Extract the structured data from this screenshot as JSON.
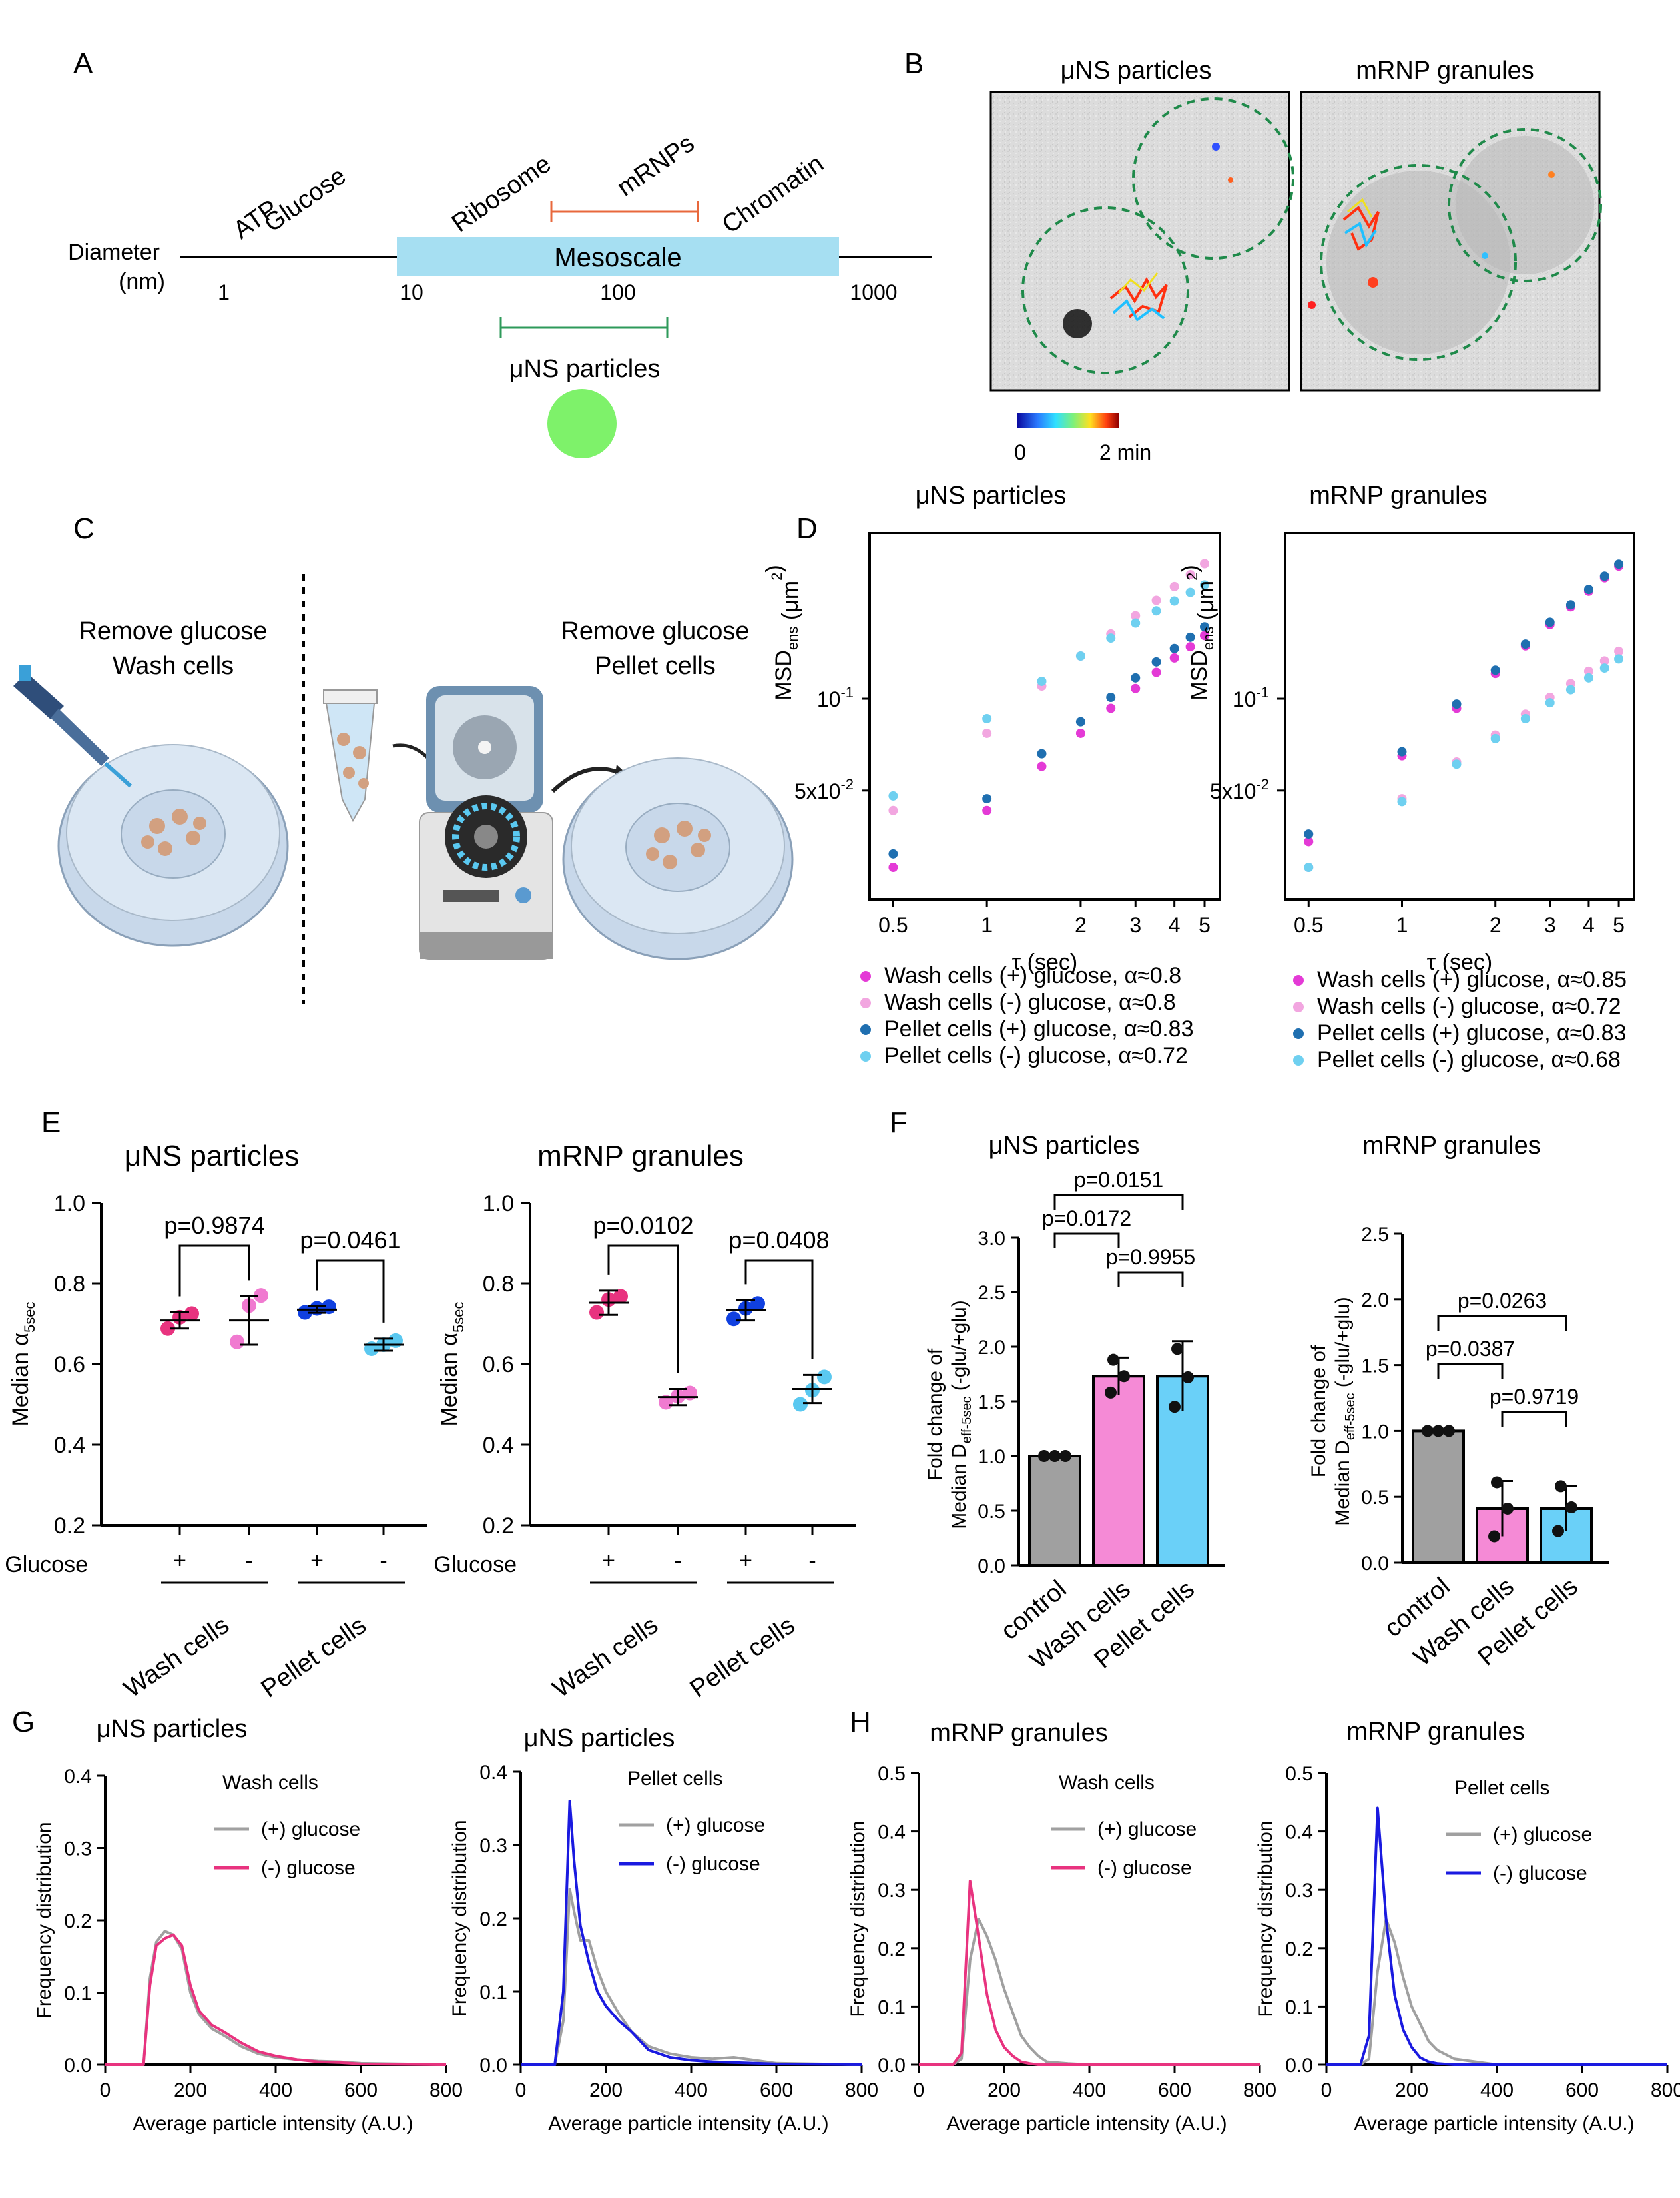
{
  "panels": {
    "a": {
      "letter": "A",
      "diameter_label": "Diameter",
      "nm_label": "(nm)",
      "scale_ticks": [
        "1",
        "10",
        "100",
        "1000"
      ],
      "mesoscale_label": "Mesoscale",
      "tilted_labels": [
        "ATP",
        "Glucose",
        "Ribosome",
        "mRNPs",
        "Chromatin"
      ],
      "uns_label": "μNS particles",
      "colors": {
        "mesoscale": "#a6dff2",
        "mrnp": "#e8683c",
        "uns": "#2e9a5a",
        "dot": "#7ef26a"
      }
    },
    "b": {
      "letter": "B",
      "titles": [
        "μNS particles",
        "mRNP granules"
      ],
      "colorbar_labels": [
        "0",
        "2 min"
      ]
    },
    "c": {
      "letter": "C",
      "left_title": [
        "Remove glucose",
        "Wash cells"
      ],
      "right_title": [
        "Remove glucose",
        "Pellet cells"
      ]
    },
    "d": {
      "letter": "D",
      "titles": [
        "μNS particles",
        "mRNP granules"
      ],
      "ylabel_main": "MSD",
      "ylabel_sub": "ens",
      "ylabel_unit": "(μm",
      "ylabel_close": ")",
      "ylabel_sup": "2",
      "xlabel": "τ (sec)",
      "y_ticks": [
        "10",
        "5x10"
      ],
      "y_tick_sup": [
        "-1",
        "-2"
      ],
      "x_ticks": [
        "0.5",
        "1",
        "2",
        "3",
        "4",
        "5"
      ],
      "legend_left": [
        "Wash cells (+) glucose, α≈0.8",
        "Wash cells (-) glucose, α≈0.8",
        "Pellet cells (+) glucose, α≈0.83",
        "Pellet cells (-) glucose, α≈0.72"
      ],
      "legend_right": [
        "Wash cells (+) glucose, α≈0.85",
        "Wash cells (-) glucose, α≈0.72",
        "Pellet cells (+) glucose, α≈0.83",
        "Pellet cells (-) glucose, α≈0.68"
      ],
      "colors": [
        "#e43ad6",
        "#f2a6e0",
        "#1f6fb0",
        "#6fd0f0"
      ]
    },
    "e": {
      "letter": "E",
      "titles": [
        "μNS particles",
        "mRNP granules"
      ],
      "ylabel": "Median α",
      "ylabel_sub": "5sec",
      "y_ticks": [
        "0.2",
        "0.4",
        "0.6",
        "0.8",
        "1.0"
      ],
      "glucose_label": "Glucose",
      "signs": [
        "+",
        "-",
        "+",
        "-"
      ],
      "group_labels": [
        "Wash cells",
        "Pellet cells"
      ],
      "pvalues_left": [
        "p=0.9874",
        "p=0.0461"
      ],
      "pvalues_right": [
        "p=0.0102",
        "p=0.0408"
      ],
      "colors": [
        "#e8337f",
        "#f07ad0",
        "#1040e0",
        "#5ac8f0"
      ]
    },
    "f": {
      "letter": "F",
      "titles": [
        "μNS particles",
        "mRNP granules"
      ],
      "ylabel_line1": "Fold change of",
      "ylabel_line2": "Median D",
      "ylabel_sub": "eff-5sec",
      "ylabel_tail": " (-glu/+glu)",
      "left_y_ticks": [
        "0.0",
        "0.5",
        "1.0",
        "1.5",
        "2.0",
        "2.5",
        "3.0"
      ],
      "right_y_ticks": [
        "0.0",
        "0.5",
        "1.0",
        "1.5",
        "2.0",
        "2.5"
      ],
      "categories": [
        "control",
        "Wash cells",
        "Pellet cells"
      ],
      "pvalues_left": [
        "p=0.0151",
        "p=0.0172",
        "p=0.9955"
      ],
      "pvalues_right": [
        "p=0.0263",
        "p=0.0387",
        "p=0.9719"
      ],
      "colors": [
        "#a0a0a0",
        "#f58ad6",
        "#6ad0f8"
      ]
    },
    "g": {
      "letter": "G",
      "titles": [
        "μNS particles",
        "μNS particles"
      ],
      "legend_titles": [
        "Wash cells",
        "Pellet cells"
      ]
    },
    "h": {
      "letter": "H",
      "titles": [
        "mRNP granules",
        "mRNP granules"
      ],
      "legend_titles": [
        "Wash cells",
        "Pellet cells"
      ]
    },
    "hist": {
      "ylabel": "Frequency distribution",
      "xlabel": "Average particle intensity (A.U.)",
      "x_ticks": [
        "0",
        "200",
        "400",
        "600",
        "800"
      ],
      "y_ticks": [
        "0.0",
        "0.1",
        "0.2",
        "0.3",
        "0.4"
      ],
      "h_y_ticks": [
        "0.0",
        "0.1",
        "0.2",
        "0.3",
        "0.4",
        "0.5"
      ],
      "legend_plus": "(+) glucose",
      "legend_minus": "(-) glucose",
      "colors": {
        "plus": "#a0a0a0",
        "wash_minus": "#e8337f",
        "pellet_minus": "#1a1ae0"
      }
    }
  },
  "chart_data": [
    {
      "panel": "D-left",
      "type": "scatter",
      "title": "μNS particles",
      "xlabel": "τ (sec)",
      "ylabel": "MSD_ens (μm²)",
      "x_scale": "log",
      "y_scale": "log",
      "xlim": [
        0.42,
        5.6
      ],
      "ylim": [
        0.022,
        0.35
      ],
      "series": [
        {
          "name": "Wash cells (+) glucose, α≈0.8",
          "x": [
            0.5,
            1,
            1.5,
            2,
            2.5,
            3,
            3.5,
            4,
            4.5,
            5
          ],
          "y": [
            0.028,
            0.043,
            0.06,
            0.077,
            0.093,
            0.108,
            0.122,
            0.136,
            0.148,
            0.161
          ]
        },
        {
          "name": "Wash cells (-) glucose, α≈0.8",
          "x": [
            0.5,
            1,
            1.5,
            2,
            2.5,
            3,
            3.5,
            4,
            4.5,
            5
          ],
          "y": [
            0.043,
            0.077,
            0.11,
            0.138,
            0.163,
            0.187,
            0.21,
            0.233,
            0.255,
            0.277
          ]
        },
        {
          "name": "Pellet cells (+) glucose, α≈0.83",
          "x": [
            0.5,
            1,
            1.5,
            2,
            2.5,
            3,
            3.5,
            4,
            4.5,
            5
          ],
          "y": [
            0.031,
            0.047,
            0.066,
            0.084,
            0.101,
            0.117,
            0.132,
            0.146,
            0.159,
            0.172
          ]
        },
        {
          "name": "Pellet cells (-) glucose, α≈0.72",
          "x": [
            0.5,
            1,
            1.5,
            2,
            2.5,
            3,
            3.5,
            4,
            4.5,
            5
          ],
          "y": [
            0.048,
            0.086,
            0.114,
            0.138,
            0.158,
            0.177,
            0.194,
            0.209,
            0.223,
            0.236
          ]
        }
      ]
    },
    {
      "panel": "D-right",
      "type": "scatter",
      "title": "mRNP granules",
      "xlabel": "τ (sec)",
      "ylabel": "MSD_ens (μm²)",
      "x_scale": "log",
      "y_scale": "log",
      "xlim": [
        0.42,
        5.6
      ],
      "ylim": [
        0.022,
        0.35
      ],
      "series": [
        {
          "name": "Wash cells (+) glucose, α≈0.85",
          "x": [
            0.5,
            1,
            1.5,
            2,
            2.5,
            3,
            3.5,
            4,
            4.5,
            5
          ],
          "y": [
            0.034,
            0.065,
            0.093,
            0.121,
            0.149,
            0.175,
            0.2,
            0.225,
            0.249,
            0.272
          ]
        },
        {
          "name": "Wash cells (-) glucose, α≈0.72",
          "x": [
            0.5,
            1,
            1.5,
            2,
            2.5,
            3,
            3.5,
            4,
            4.5,
            5
          ],
          "y": [
            0.028,
            0.047,
            0.062,
            0.076,
            0.089,
            0.101,
            0.112,
            0.123,
            0.133,
            0.143
          ]
        },
        {
          "name": "Pellet cells (+) glucose, α≈0.83",
          "x": [
            0.5,
            1,
            1.5,
            2,
            2.5,
            3,
            3.5,
            4,
            4.5,
            5
          ],
          "y": [
            0.036,
            0.067,
            0.096,
            0.124,
            0.151,
            0.178,
            0.203,
            0.228,
            0.252,
            0.276
          ]
        },
        {
          "name": "Pellet cells (-) glucose, α≈0.68",
          "x": [
            0.5,
            1,
            1.5,
            2,
            2.5,
            3,
            3.5,
            4,
            4.5,
            5
          ],
          "y": [
            0.028,
            0.046,
            0.061,
            0.074,
            0.086,
            0.097,
            0.107,
            0.117,
            0.126,
            0.135
          ]
        }
      ]
    },
    {
      "panel": "E-left",
      "type": "scatter",
      "title": "μNS particles",
      "ylabel": "Median α5sec",
      "ylim": [
        0.2,
        1.0
      ],
      "groups": [
        {
          "glucose": "+",
          "points": [
            0.688,
            0.716,
            0.725
          ],
          "mean": 0.708,
          "sd": 0.02
        },
        {
          "glucose": "-",
          "points": [
            0.655,
            0.745,
            0.77
          ],
          "mean": 0.708,
          "sd": 0.06
        },
        {
          "glucose": "+",
          "points": [
            0.728,
            0.738,
            0.742
          ],
          "mean": 0.735,
          "sd": 0.008
        },
        {
          "glucose": "-",
          "points": [
            0.638,
            0.648,
            0.658
          ],
          "mean": 0.648,
          "sd": 0.015
        }
      ]
    },
    {
      "panel": "E-right",
      "type": "scatter",
      "title": "mRNP granules",
      "ylabel": "Median α5sec",
      "ylim": [
        0.2,
        1.0
      ],
      "groups": [
        {
          "glucose": "+",
          "points": [
            0.728,
            0.76,
            0.768
          ],
          "mean": 0.752,
          "sd": 0.03
        },
        {
          "glucose": "-",
          "points": [
            0.505,
            0.52,
            0.528
          ],
          "mean": 0.518,
          "sd": 0.02
        },
        {
          "glucose": "+",
          "points": [
            0.712,
            0.738,
            0.75
          ],
          "mean": 0.733,
          "sd": 0.025
        },
        {
          "glucose": "-",
          "points": [
            0.5,
            0.535,
            0.568
          ],
          "mean": 0.538,
          "sd": 0.035
        }
      ]
    },
    {
      "panel": "F-left",
      "type": "bar",
      "title": "μNS particles",
      "categories": [
        "control",
        "Wash cells",
        "Pellet cells"
      ],
      "values": [
        1.0,
        1.73,
        1.73
      ],
      "sd": [
        0.0,
        0.17,
        0.32
      ],
      "ylim": [
        0,
        3.0
      ],
      "points": [
        [
          1.0,
          1.0,
          1.0
        ],
        [
          1.58,
          1.73,
          1.88
        ],
        [
          1.45,
          1.72,
          1.98
        ]
      ]
    },
    {
      "panel": "F-right",
      "type": "bar",
      "title": "mRNP granules",
      "categories": [
        "control",
        "Wash cells",
        "Pellet cells"
      ],
      "values": [
        1.0,
        0.41,
        0.41
      ],
      "sd": [
        0.0,
        0.21,
        0.17
      ],
      "ylim": [
        0,
        2.5
      ],
      "points": [
        [
          1.0,
          1.0,
          1.0
        ],
        [
          0.2,
          0.41,
          0.61
        ],
        [
          0.24,
          0.42,
          0.58
        ]
      ]
    },
    {
      "panel": "G-left",
      "type": "line",
      "title": "μNS particles",
      "legend": "Wash cells",
      "xlim": [
        0,
        800
      ],
      "ylim": [
        0,
        0.4
      ],
      "series": [
        {
          "name": "(+) glucose",
          "x": [
            0,
            90,
            105,
            120,
            140,
            160,
            180,
            200,
            220,
            250,
            280,
            320,
            360,
            400,
            450,
            500,
            550,
            600,
            800
          ],
          "y": [
            0,
            0,
            0.12,
            0.17,
            0.185,
            0.18,
            0.16,
            0.1,
            0.07,
            0.05,
            0.04,
            0.025,
            0.015,
            0.01,
            0.007,
            0.005,
            0.004,
            0.002,
            0
          ]
        },
        {
          "name": "(-) glucose",
          "x": [
            0,
            90,
            105,
            120,
            140,
            160,
            180,
            200,
            220,
            250,
            280,
            320,
            360,
            400,
            450,
            500,
            550,
            600,
            800
          ],
          "y": [
            0,
            0,
            0.11,
            0.165,
            0.175,
            0.18,
            0.165,
            0.11,
            0.075,
            0.055,
            0.045,
            0.03,
            0.018,
            0.012,
            0.007,
            0.004,
            0.003,
            0.001,
            0
          ]
        }
      ]
    },
    {
      "panel": "G-right",
      "type": "line",
      "title": "μNS particles",
      "legend": "Pellet cells",
      "xlim": [
        0,
        800
      ],
      "ylim": [
        0,
        0.4
      ],
      "series": [
        {
          "name": "(+) glucose",
          "x": [
            0,
            80,
            100,
            115,
            125,
            140,
            160,
            180,
            200,
            230,
            260,
            300,
            350,
            400,
            450,
            500,
            550,
            600,
            800
          ],
          "y": [
            0,
            0,
            0.06,
            0.24,
            0.21,
            0.17,
            0.17,
            0.13,
            0.1,
            0.07,
            0.045,
            0.025,
            0.015,
            0.01,
            0.008,
            0.01,
            0.006,
            0.002,
            0
          ]
        },
        {
          "name": "(-) glucose",
          "x": [
            0,
            80,
            100,
            115,
            125,
            140,
            160,
            180,
            200,
            230,
            260,
            300,
            350,
            400,
            450,
            500,
            550,
            600,
            800
          ],
          "y": [
            0,
            0,
            0.1,
            0.36,
            0.28,
            0.19,
            0.14,
            0.1,
            0.08,
            0.06,
            0.045,
            0.02,
            0.01,
            0.006,
            0.004,
            0.003,
            0.002,
            0.001,
            0
          ]
        }
      ]
    },
    {
      "panel": "H-left",
      "type": "line",
      "title": "mRNP granules",
      "legend": "Wash cells",
      "xlim": [
        0,
        800
      ],
      "ylim": [
        0,
        0.5
      ],
      "series": [
        {
          "name": "(+) glucose",
          "x": [
            0,
            80,
            100,
            120,
            140,
            160,
            180,
            200,
            220,
            240,
            260,
            280,
            300,
            350,
            400,
            800
          ],
          "y": [
            0,
            0,
            0.01,
            0.18,
            0.25,
            0.22,
            0.18,
            0.13,
            0.09,
            0.05,
            0.03,
            0.015,
            0.005,
            0.002,
            0,
            0
          ]
        },
        {
          "name": "(-) glucose",
          "x": [
            0,
            80,
            100,
            120,
            140,
            160,
            180,
            200,
            220,
            240,
            260,
            280,
            300,
            800
          ],
          "y": [
            0,
            0,
            0.02,
            0.315,
            0.22,
            0.12,
            0.06,
            0.03,
            0.015,
            0.005,
            0.002,
            0,
            0,
            0
          ]
        }
      ]
    },
    {
      "panel": "H-right",
      "type": "line",
      "title": "mRNP granules",
      "legend": "Pellet cells",
      "xlim": [
        0,
        800
      ],
      "ylim": [
        0,
        0.5
      ],
      "series": [
        {
          "name": "(+) glucose",
          "x": [
            0,
            80,
            100,
            120,
            140,
            160,
            180,
            200,
            220,
            240,
            260,
            300,
            350,
            400,
            800
          ],
          "y": [
            0,
            0,
            0.01,
            0.16,
            0.25,
            0.21,
            0.15,
            0.1,
            0.07,
            0.04,
            0.025,
            0.01,
            0.005,
            0,
            0
          ]
        },
        {
          "name": "(-) glucose",
          "x": [
            0,
            80,
            100,
            120,
            140,
            160,
            180,
            200,
            220,
            240,
            260,
            300,
            800
          ],
          "y": [
            0,
            0,
            0.05,
            0.44,
            0.25,
            0.12,
            0.06,
            0.03,
            0.012,
            0.005,
            0.002,
            0,
            0
          ]
        }
      ]
    }
  ]
}
